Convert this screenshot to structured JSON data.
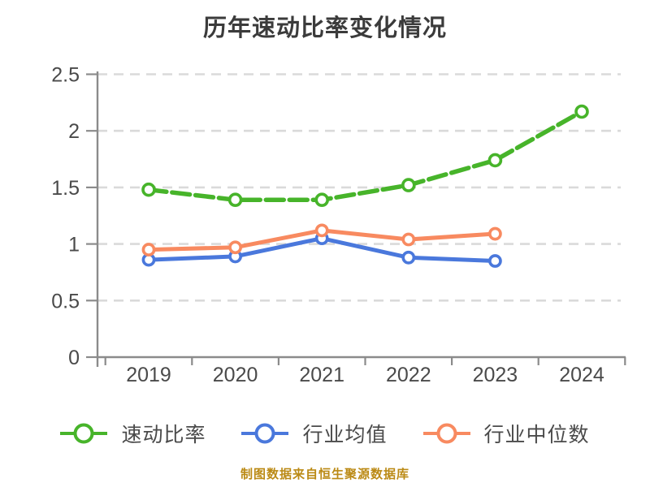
{
  "title": "历年速动比率变化情况",
  "footer": "制图数据来自恒生聚源数据库",
  "chart_data": {
    "type": "line",
    "title": "历年速动比率变化情况",
    "categories": [
      "2019",
      "2020",
      "2021",
      "2022",
      "2023",
      "2024"
    ],
    "series": [
      {
        "name": "速动比率",
        "color": "#47B42A",
        "line_style": "dashed",
        "values": [
          1.48,
          1.39,
          1.39,
          1.52,
          1.74,
          2.17
        ]
      },
      {
        "name": "行业均值",
        "color": "#4A78DC",
        "line_style": "solid",
        "values": [
          0.86,
          0.89,
          1.05,
          0.88,
          0.85,
          null
        ]
      },
      {
        "name": "行业中位数",
        "color": "#F88A60",
        "line_style": "solid",
        "values": [
          0.95,
          0.97,
          1.12,
          1.04,
          1.09,
          null
        ]
      }
    ],
    "xlabel": "",
    "ylabel": "",
    "ylim": [
      0,
      2.5
    ],
    "yticks": [
      0,
      0.5,
      1,
      1.5,
      2,
      2.5
    ],
    "grid": "horizontal-dashed",
    "legend_position": "bottom",
    "marker": "circle-white-fill",
    "colors": {
      "grid": "#DADADA",
      "axis": "#8B8B8B",
      "tick_text": "#4A4A4A",
      "title_text": "#3B3B3B",
      "legend_text": "#4A4A4A",
      "footer_text": "#BB8A15",
      "marker_fill": "#FFFFFF"
    }
  }
}
